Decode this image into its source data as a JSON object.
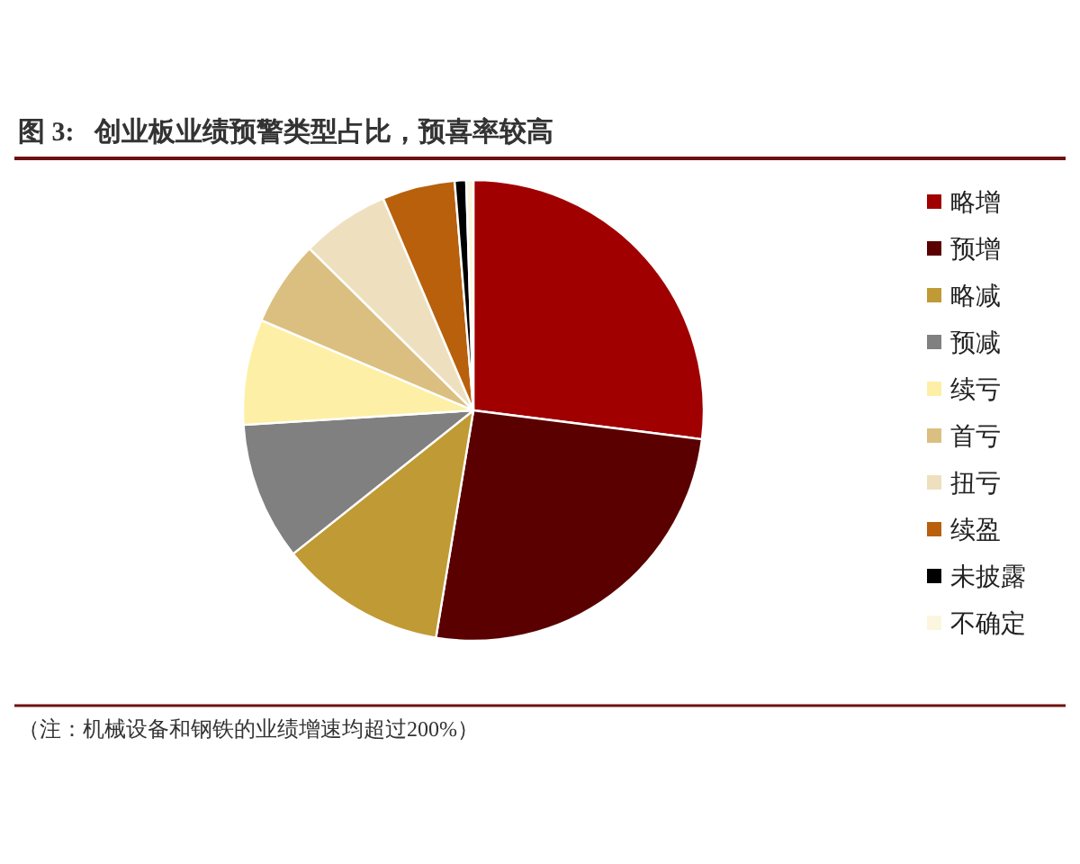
{
  "chart_data": {
    "type": "pie",
    "title": "图 3:   创业板业绩预警类型占比，预喜率较高",
    "categories": [
      "略增",
      "预增",
      "略减",
      "预减",
      "续亏",
      "首亏",
      "扭亏",
      "续盈",
      "未披露",
      "不确定"
    ],
    "values": [
      27.0,
      25.6,
      11.7,
      9.7,
      7.4,
      6.0,
      6.2,
      5.1,
      0.8,
      0.5
    ],
    "colors": [
      "#a00000",
      "#5a0000",
      "#c09a34",
      "#808080",
      "#fdf0a6",
      "#dbbf80",
      "#eee0bf",
      "#b8600c",
      "#000000",
      "#fcf6df"
    ],
    "legend": "right",
    "annotations": [
      "（注：机械设备和钢铁的业绩增速均超过200%）"
    ]
  }
}
